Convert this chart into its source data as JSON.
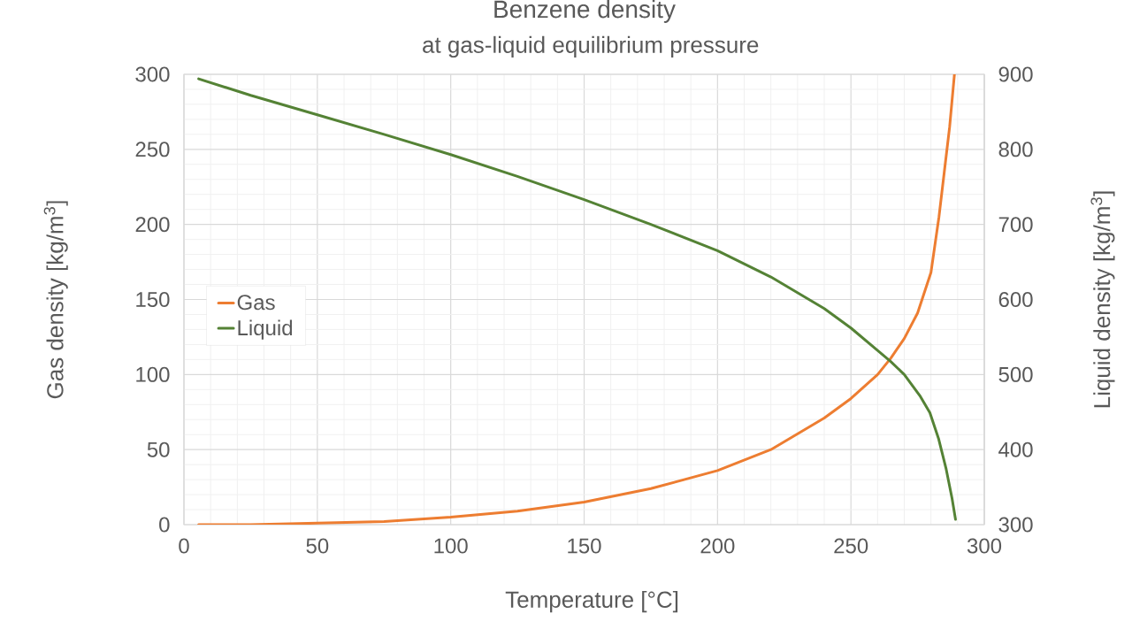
{
  "chart_data": {
    "type": "line",
    "title": "Benzene density",
    "subtitle": "at gas-liquid equilibrium pressure",
    "xlabel": "Temperature [°C]",
    "ylabel": "Gas density [kg/m$^{3}$]",
    "y2label": "Liquid density [kg/m$^{3}$]",
    "series": [
      {
        "name": "Gas",
        "color": "#ed7d31",
        "x": [
          5.5,
          25,
          50,
          75,
          100,
          125,
          150,
          175,
          200,
          220,
          240,
          250,
          260,
          265,
          270,
          275,
          280,
          283,
          285,
          287,
          288.8
        ],
        "values": [
          0,
          0,
          1,
          2,
          5,
          9,
          15,
          24,
          36,
          50,
          71,
          84,
          100,
          111,
          124,
          141,
          168,
          205,
          235,
          265,
          300
        ]
      },
      {
        "name": "Liquid",
        "color": "#548235",
        "axis": "y2",
        "x": [
          5.5,
          25,
          50,
          75,
          100,
          125,
          150,
          175,
          200,
          220,
          240,
          250,
          260,
          265,
          270,
          275.8,
          279.6,
          282.9,
          285.7,
          287.9,
          289.2
        ],
        "values": [
          894,
          872,
          846,
          820,
          793,
          764,
          733,
          700,
          665,
          630,
          588,
          562,
          532,
          517,
          500,
          472,
          449,
          414,
          374,
          335,
          307
        ]
      }
    ],
    "xlim": [
      0,
      300
    ],
    "xticks": [
      0,
      50,
      100,
      150,
      200,
      250,
      300
    ],
    "ylim": [
      0,
      300
    ],
    "yticks": [
      0,
      50,
      100,
      150,
      200,
      250,
      300
    ],
    "y2lim": [
      300,
      900
    ],
    "y2ticks": [
      300,
      400,
      500,
      600,
      700,
      800,
      900
    ],
    "grid": true,
    "legend": "left"
  }
}
